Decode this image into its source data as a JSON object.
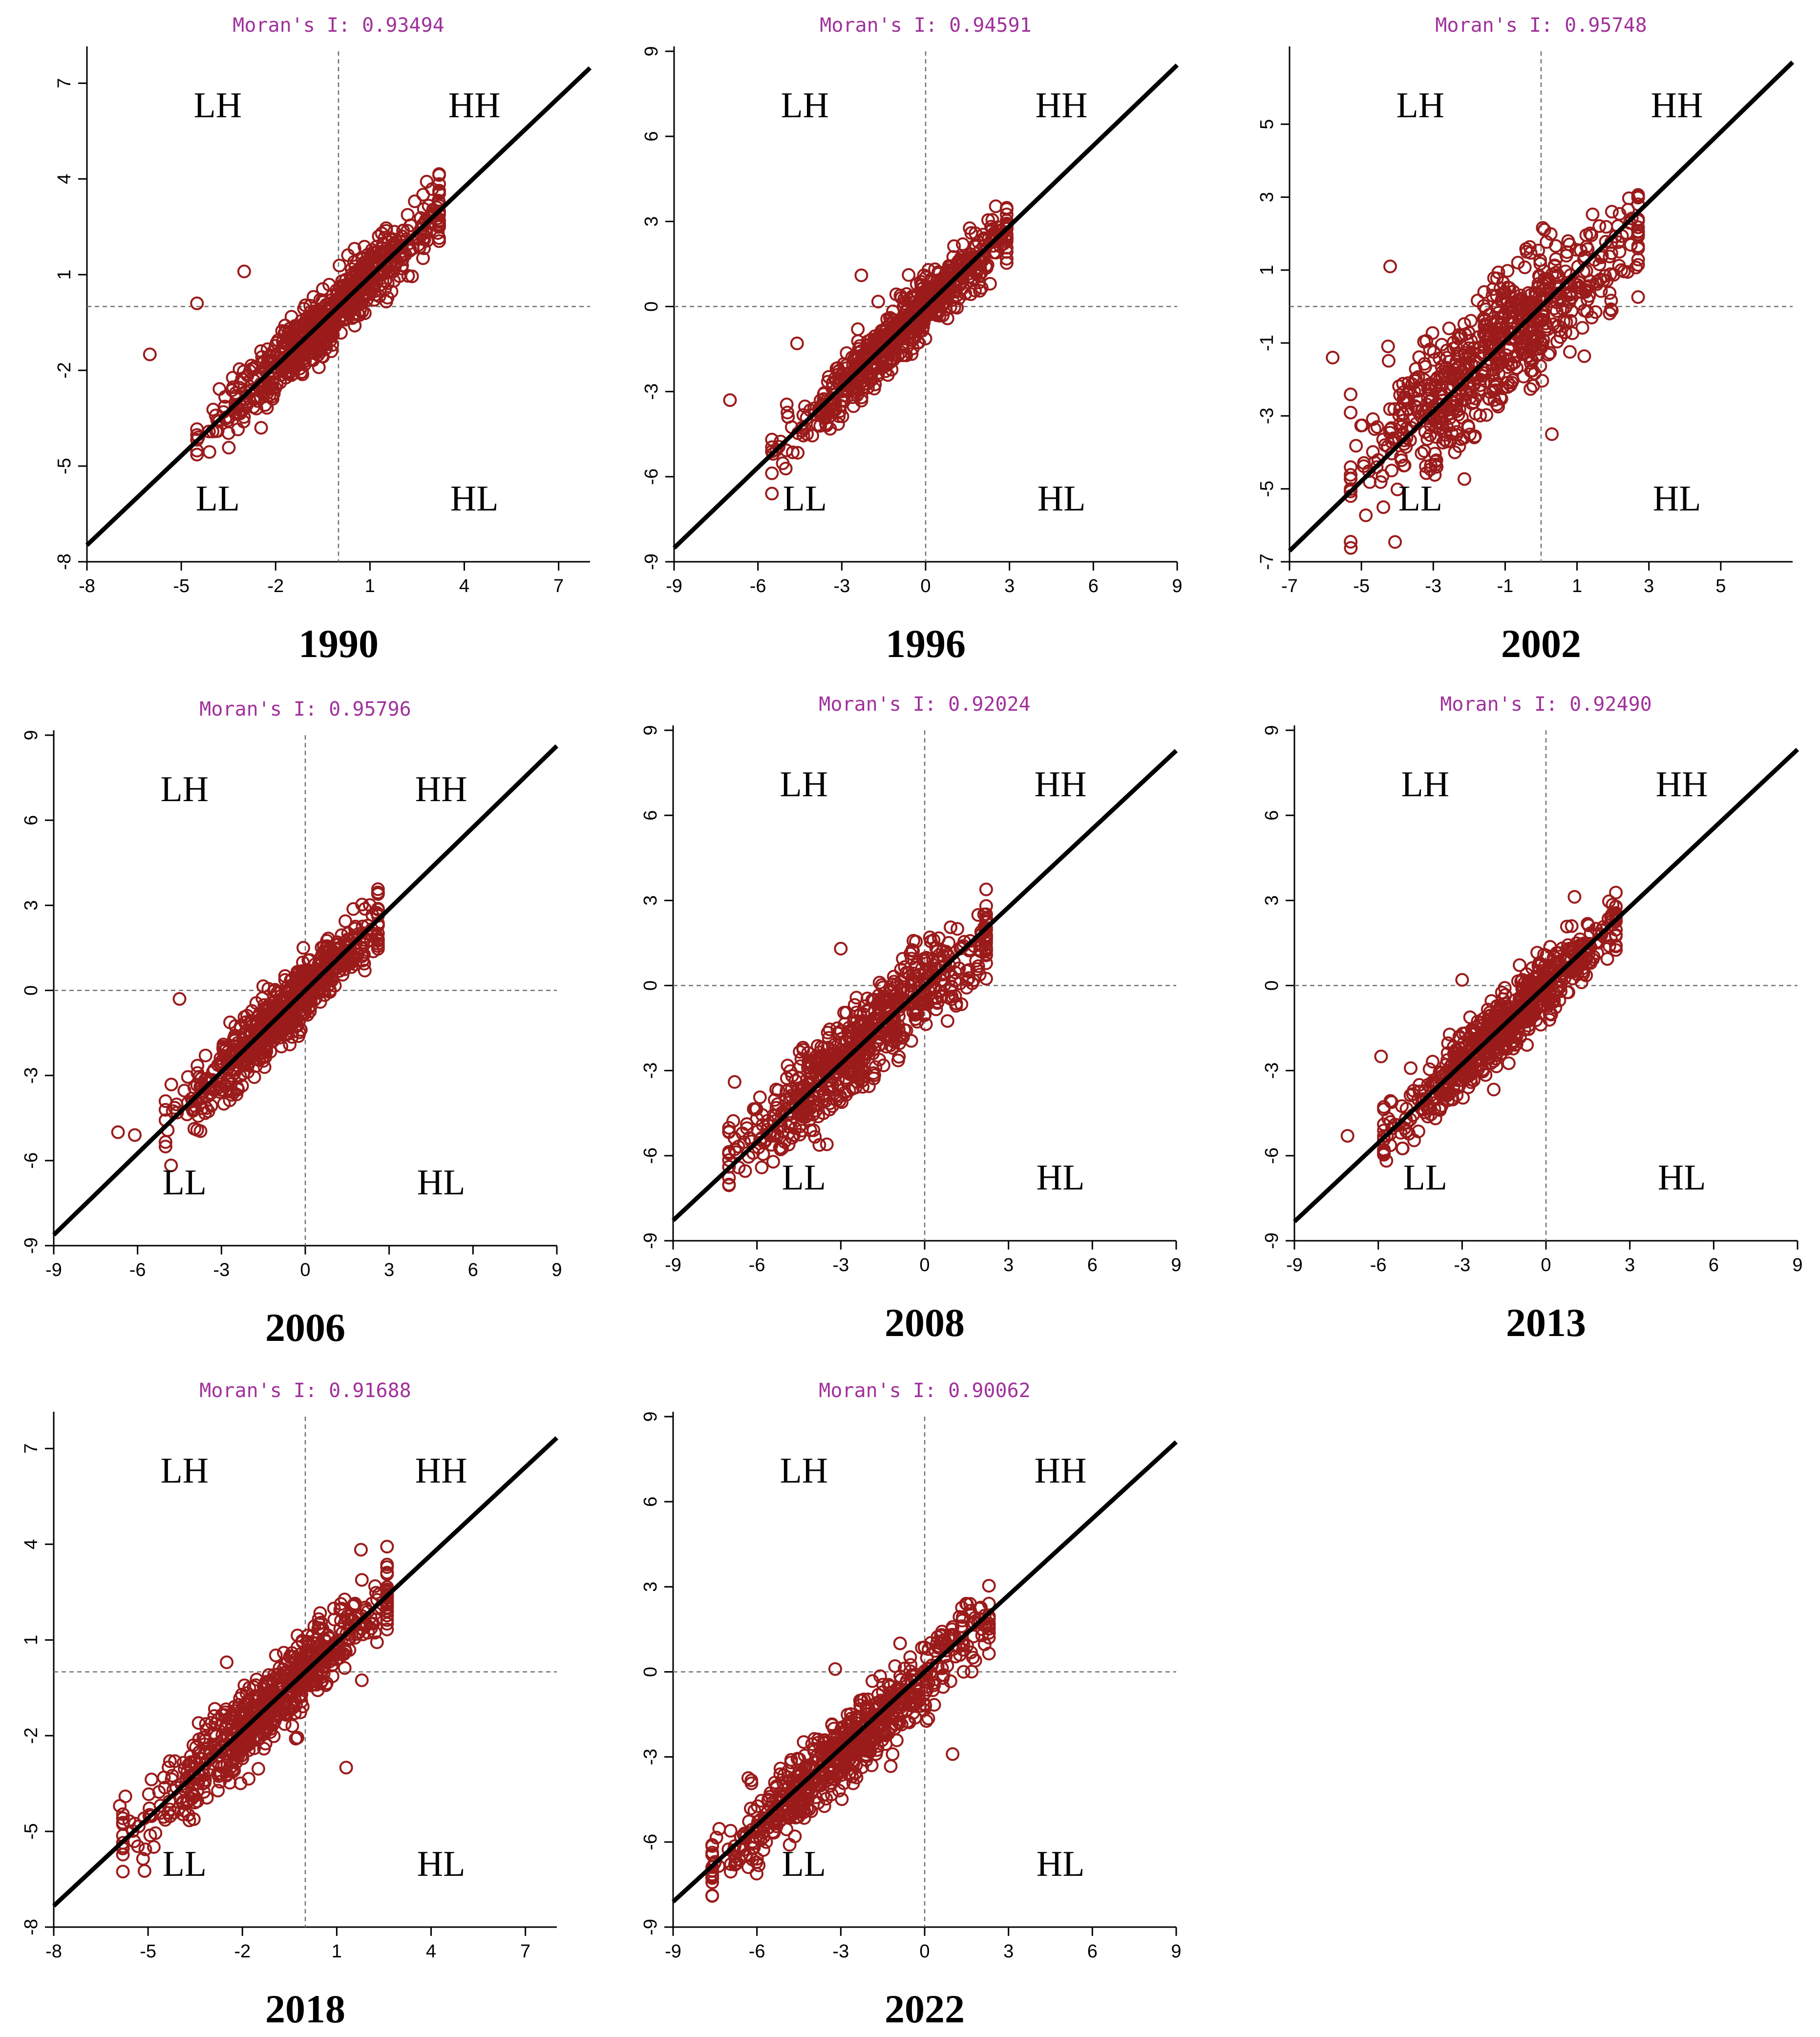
{
  "figure": {
    "quadrant_labels": {
      "lh": "LH",
      "hh": "HH",
      "ll": "LL",
      "hl": "HL"
    },
    "colors": {
      "point": "#9b1b1b",
      "fit_line": "#000000",
      "moran_text": "#a0319b",
      "axis": "#000000",
      "dash": "#707070"
    }
  },
  "chart_data": [
    {
      "type": "scatter",
      "year": "1990",
      "title": "Moran's I: 0.93494",
      "moran_i": 0.93494,
      "xlim": [
        -8,
        8
      ],
      "ylim": [
        -8,
        8
      ],
      "x_ticks": [
        -8,
        -5,
        -2,
        1,
        4,
        7
      ],
      "y_ticks": [
        -8,
        -5,
        -2,
        1,
        4,
        7
      ],
      "x_tick_labels": [
        "-8",
        "-5",
        "-2",
        "1",
        "4",
        "7"
      ],
      "y_tick_labels": [
        "-8",
        "-5",
        "-2",
        "1",
        "4",
        "7"
      ],
      "cloud": {
        "center": [
          -0.3,
          -0.3
        ],
        "x_range": [
          -4.5,
          3.2
        ],
        "slope": 0.93,
        "spread": 0.9
      },
      "outliers": [
        [
          -6.0,
          -1.5
        ],
        [
          -4.5,
          0.1
        ],
        [
          -3.0,
          1.1
        ]
      ]
    },
    {
      "type": "scatter",
      "year": "1996",
      "title": "Moran's I: 0.94591",
      "moran_i": 0.94591,
      "xlim": [
        -9,
        9
      ],
      "ylim": [
        -9,
        9
      ],
      "x_ticks": [
        -9,
        -6,
        -3,
        0,
        3,
        6,
        9
      ],
      "y_ticks": [
        -9,
        -6,
        -3,
        0,
        3,
        6,
        9
      ],
      "x_tick_labels": [
        "-9",
        "-6",
        "-3",
        "0",
        "3",
        "6",
        "9"
      ],
      "y_tick_labels": [
        "-9",
        "-6",
        "-3",
        "0",
        "3",
        "6",
        "9"
      ],
      "cloud": {
        "center": [
          -0.8,
          -0.8
        ],
        "x_range": [
          -5.5,
          2.9
        ],
        "slope": 0.95,
        "spread": 0.9
      },
      "outliers": [
        [
          -7.0,
          -3.3
        ],
        [
          -4.6,
          -1.3
        ],
        [
          -2.3,
          1.1
        ]
      ]
    },
    {
      "type": "scatter",
      "year": "2002",
      "title": "Moran's I: 0.95748",
      "moran_i": 0.95748,
      "xlim": [
        -7,
        7
      ],
      "ylim": [
        -7,
        7
      ],
      "x_ticks": [
        -7,
        -5,
        -3,
        -1,
        1,
        3,
        5
      ],
      "y_ticks": [
        -7,
        -5,
        -3,
        -1,
        1,
        3,
        5
      ],
      "x_tick_labels": [
        "-7",
        "-5",
        "-3",
        "-1",
        "1",
        "3",
        "5"
      ],
      "y_tick_labels": [
        "-7",
        "-5",
        "-3",
        "-1",
        "1",
        "3",
        "5"
      ],
      "cloud": {
        "center": [
          -1.2,
          -1.1
        ],
        "x_range": [
          -5.3,
          2.7
        ],
        "slope": 0.8,
        "spread": 1.6
      },
      "outliers": [
        [
          -5.8,
          -1.4
        ],
        [
          -4.2,
          1.1
        ],
        [
          -2.4,
          -4.0
        ],
        [
          0.3,
          -3.5
        ],
        [
          -0.4,
          1.5
        ]
      ]
    },
    {
      "type": "scatter",
      "year": "2006",
      "title": "Moran's I: 0.95796",
      "moran_i": 0.95796,
      "xlim": [
        -9,
        9
      ],
      "ylim": [
        -9,
        9
      ],
      "x_ticks": [
        -9,
        -6,
        -3,
        0,
        3,
        6,
        9
      ],
      "y_ticks": [
        -9,
        -6,
        -3,
        0,
        3,
        6,
        9
      ],
      "x_tick_labels": [
        "-9",
        "-6",
        "-3",
        "0",
        "3",
        "6",
        "9"
      ],
      "y_tick_labels": [
        "-9",
        "-6",
        "-3",
        "0",
        "3",
        "6",
        "9"
      ],
      "cloud": {
        "center": [
          -0.8,
          -0.8
        ],
        "x_range": [
          -5.0,
          2.6
        ],
        "slope": 0.95,
        "spread": 1.0
      },
      "outliers": [
        [
          -6.7,
          -5.0
        ],
        [
          -6.1,
          -5.1
        ],
        [
          -4.5,
          -0.3
        ]
      ]
    },
    {
      "type": "scatter",
      "year": "2008",
      "title": "Moran's I: 0.92024",
      "moran_i": 0.92024,
      "xlim": [
        -9,
        9
      ],
      "ylim": [
        -9,
        9
      ],
      "x_ticks": [
        -9,
        -6,
        -3,
        0,
        3,
        6,
        9
      ],
      "y_ticks": [
        -9,
        -6,
        -3,
        0,
        3,
        6,
        9
      ],
      "x_tick_labels": [
        "-9",
        "-6",
        "-3",
        "0",
        "3",
        "6",
        "9"
      ],
      "y_tick_labels": [
        "-9",
        "-6",
        "-3",
        "0",
        "3",
        "6",
        "9"
      ],
      "cloud": {
        "center": [
          -2.2,
          -2.0
        ],
        "x_range": [
          -7.0,
          2.2
        ],
        "slope": 0.85,
        "spread": 1.4
      },
      "outliers": [
        [
          -3.0,
          1.3
        ],
        [
          -3.5,
          -5.6
        ],
        [
          -6.8,
          -3.4
        ]
      ]
    },
    {
      "type": "scatter",
      "year": "2013",
      "title": "Moran's I: 0.92490",
      "moran_i": 0.9249,
      "xlim": [
        -9,
        9
      ],
      "ylim": [
        -9,
        9
      ],
      "x_ticks": [
        -9,
        -6,
        -3,
        0,
        3,
        6,
        9
      ],
      "y_ticks": [
        -9,
        -6,
        -3,
        0,
        3,
        6,
        9
      ],
      "x_tick_labels": [
        "-9",
        "-6",
        "-3",
        "0",
        "3",
        "6",
        "9"
      ],
      "y_tick_labels": [
        "-9",
        "-6",
        "-3",
        "0",
        "3",
        "6",
        "9"
      ],
      "cloud": {
        "center": [
          -1.5,
          -1.4
        ],
        "x_range": [
          -5.8,
          2.5
        ],
        "slope": 0.92,
        "spread": 1.0
      },
      "outliers": [
        [
          -7.1,
          -5.3
        ],
        [
          -5.9,
          -2.5
        ],
        [
          -3.0,
          0.2
        ]
      ]
    },
    {
      "type": "scatter",
      "year": "2018",
      "title": "Moran's I: 0.91688",
      "moran_i": 0.91688,
      "xlim": [
        -8,
        8
      ],
      "ylim": [
        -8,
        8
      ],
      "x_ticks": [
        -8,
        -5,
        -2,
        1,
        4,
        7
      ],
      "y_ticks": [
        -8,
        -5,
        -2,
        1,
        4,
        7
      ],
      "x_tick_labels": [
        "-8",
        "-5",
        "-2",
        "1",
        "4",
        "7"
      ],
      "y_tick_labels": [
        "-8",
        "-5",
        "-2",
        "1",
        "4",
        "7"
      ],
      "cloud": {
        "center": [
          -1.2,
          -1.1
        ],
        "x_range": [
          -5.8,
          2.6
        ],
        "slope": 0.9,
        "spread": 1.1
      },
      "outliers": [
        [
          -5.9,
          -4.2
        ],
        [
          1.3,
          -3.0
        ],
        [
          -2.5,
          0.3
        ]
      ]
    },
    {
      "type": "scatter",
      "year": "2022",
      "title": "Moran's I: 0.90062",
      "moran_i": 0.90062,
      "xlim": [
        -9,
        9
      ],
      "ylim": [
        -9,
        9
      ],
      "x_ticks": [
        -9,
        -6,
        -3,
        0,
        3,
        6,
        9
      ],
      "y_ticks": [
        -9,
        -6,
        -3,
        0,
        3,
        6,
        9
      ],
      "x_tick_labels": [
        "-9",
        "-6",
        "-3",
        "0",
        "3",
        "6",
        "9"
      ],
      "y_tick_labels": [
        "-9",
        "-6",
        "-3",
        "0",
        "3",
        "6",
        "9"
      ],
      "cloud": {
        "center": [
          -2.6,
          -2.5
        ],
        "x_range": [
          -7.6,
          2.3
        ],
        "slope": 0.9,
        "spread": 1.2
      },
      "outliers": [
        [
          -3.2,
          0.1
        ],
        [
          1.0,
          -2.9
        ],
        [
          -7.5,
          -6.7
        ]
      ]
    }
  ]
}
